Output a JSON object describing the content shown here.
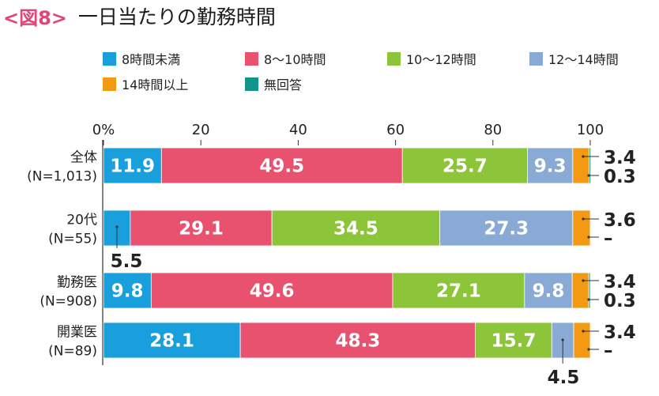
{
  "header": {
    "figure_number": "<図8>",
    "title": "一日当たりの勤務時間"
  },
  "colors": {
    "s1": "#1a9fdd",
    "s2": "#e8526e",
    "s3": "#8cc43a",
    "s4": "#8aaad6",
    "s5": "#f29a14",
    "s6": "#11958a"
  },
  "chart_data": {
    "type": "bar",
    "orientation": "horizontal",
    "stacked": true,
    "title": "一日当たりの勤務時間",
    "xlim": [
      0,
      100
    ],
    "x_ticks": [
      "0%",
      "20",
      "40",
      "60",
      "80",
      "100"
    ],
    "legend_position": "top",
    "categories": [
      {
        "name": "全体",
        "n": "(N=1,013)"
      },
      {
        "name": "20代",
        "n": "(N=55)"
      },
      {
        "name": "勤務医",
        "n": "(N=908)"
      },
      {
        "name": "開業医",
        "n": "(N=89)"
      }
    ],
    "series": [
      {
        "name": "8時間未満",
        "color_key": "s1",
        "values": [
          11.9,
          5.5,
          9.8,
          28.1
        ],
        "labels": [
          "11.9",
          "5.5",
          "9.8",
          "28.1"
        ]
      },
      {
        "name": "8～10時間",
        "color_key": "s2",
        "values": [
          49.5,
          29.1,
          49.6,
          48.3
        ],
        "labels": [
          "49.5",
          "29.1",
          "49.6",
          "48.3"
        ]
      },
      {
        "name": "10～12時間",
        "color_key": "s3",
        "values": [
          25.7,
          34.5,
          27.1,
          15.7
        ],
        "labels": [
          "25.7",
          "34.5",
          "27.1",
          "15.7"
        ]
      },
      {
        "name": "12～14時間",
        "color_key": "s4",
        "values": [
          9.3,
          27.3,
          9.8,
          4.5
        ],
        "labels": [
          "9.3",
          "27.3",
          "9.8",
          "4.5"
        ]
      },
      {
        "name": "14時間以上",
        "color_key": "s5",
        "values": [
          3.4,
          3.6,
          3.4,
          3.4
        ],
        "labels": [
          "3.4",
          "3.6",
          "3.4",
          "3.4"
        ]
      },
      {
        "name": "無回答",
        "color_key": "s6",
        "values": [
          0.3,
          0,
          0.3,
          0
        ],
        "labels": [
          "0.3",
          "–",
          "0.3",
          "–"
        ]
      }
    ]
  }
}
